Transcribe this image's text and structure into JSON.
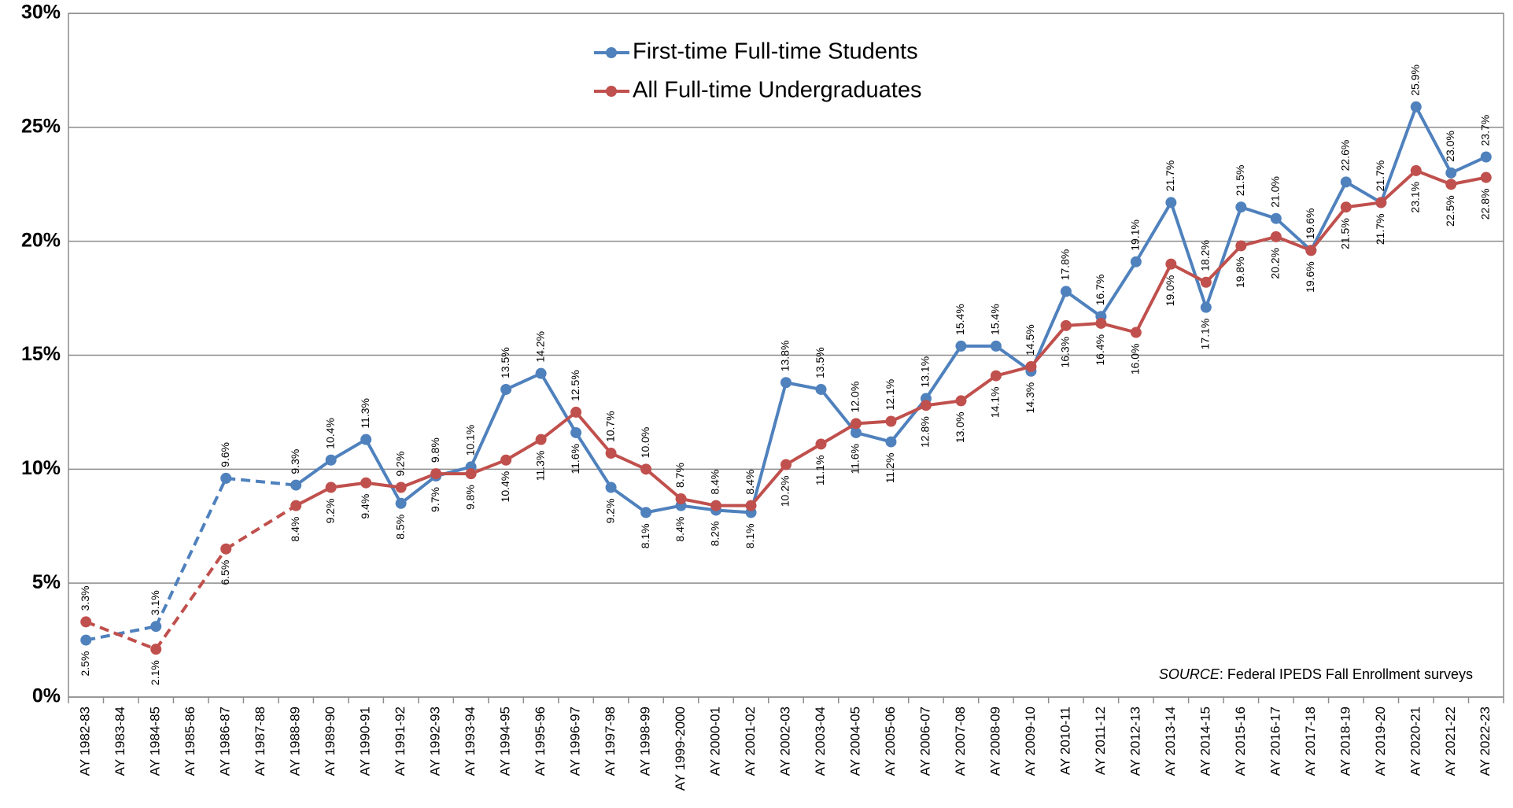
{
  "chart_data": {
    "type": "line",
    "categories": [
      "AY 1982-83",
      "AY 1983-84",
      "AY 1984-85",
      "AY 1985-86",
      "AY 1986-87",
      "AY 1987-88",
      "AY 1988-89",
      "AY 1989-90",
      "AY 1990-91",
      "AY 1991-92",
      "AY 1992-93",
      "AY 1993-94",
      "AY 1994-95",
      "AY 1995-96",
      "AY 1996-97",
      "AY 1997-98",
      "AY 1998-99",
      "AY 1999-2000",
      "AY 2000-01",
      "AY 2001-02",
      "AY 2002-03",
      "AY 2003-04",
      "AY 2004-05",
      "AY 2005-06",
      "AY 2006-07",
      "AY 2007-08",
      "AY 2008-09",
      "AY 2009-10",
      "AY 2010-11",
      "AY 2011-12",
      "AY 2012-13",
      "AY 2013-14",
      "AY 2014-15",
      "AY 2015-16",
      "AY 2016-17",
      "AY 2017-18",
      "AY 2018-19",
      "AY 2019-20",
      "AY 2020-21",
      "AY 2021-22",
      "AY 2022-23"
    ],
    "series": [
      {
        "name": "First-time Full-time Students",
        "color": "#4f81bd",
        "values": [
          2.5,
          null,
          3.1,
          null,
          9.6,
          null,
          9.3,
          10.4,
          11.3,
          8.5,
          9.7,
          10.1,
          13.5,
          14.2,
          11.6,
          9.2,
          8.1,
          8.4,
          8.2,
          8.1,
          13.8,
          13.5,
          11.6,
          11.2,
          13.1,
          15.4,
          15.4,
          14.3,
          17.8,
          16.7,
          19.1,
          21.7,
          17.1,
          21.5,
          21.0,
          19.6,
          22.6,
          21.7,
          25.9,
          23.0,
          23.7
        ],
        "value_labels": [
          "2.5%",
          null,
          "3.1%",
          null,
          "9.6%",
          null,
          "9.3%",
          "10.4%",
          "11.3%",
          "8.5%",
          "9.7%",
          "10.1%",
          "13.5%",
          "14.2%",
          "11.6%",
          "9.2%",
          "8.1%",
          "8.4%",
          "8.2%",
          "8.1%",
          "13.8%",
          "13.5%",
          "11.6%",
          "11.2%",
          "13.1%",
          "15.4%",
          "15.4%",
          "14.3%",
          "17.8%",
          "16.7%",
          "19.1%",
          "21.7%",
          "17.1%",
          "21.5%",
          "21.0%",
          "19.6%",
          "22.6%",
          "21.7%",
          "25.9%",
          "23.0%",
          "23.7%"
        ]
      },
      {
        "name": "All Full-time Undergraduates",
        "color": "#c0504d",
        "values": [
          3.3,
          null,
          2.1,
          null,
          6.5,
          null,
          8.4,
          9.2,
          9.4,
          9.2,
          9.8,
          9.8,
          10.4,
          11.3,
          12.5,
          10.7,
          10.0,
          8.7,
          8.4,
          8.4,
          10.2,
          11.1,
          12.0,
          12.1,
          12.8,
          13.0,
          14.1,
          14.5,
          16.3,
          16.4,
          16.0,
          19.0,
          18.2,
          19.8,
          20.2,
          19.6,
          21.5,
          21.7,
          23.1,
          22.5,
          22.8
        ],
        "value_labels": [
          "3.3%",
          null,
          "2.1%",
          null,
          "6.5%",
          null,
          "8.4%",
          "9.2%",
          "9.4%",
          "9.2%",
          "9.8%",
          "9.8%",
          "10.4%",
          "11.3%",
          "12.5%",
          "10.7%",
          "10.0%",
          "8.7%",
          "8.4%",
          "8.4%",
          "10.2%",
          "11.1%",
          "12.0%",
          "12.1%",
          "12.8%",
          "13.0%",
          "14.1%",
          "14.5%",
          "16.3%",
          "16.4%",
          "16.0%",
          "19.0%",
          "18.2%",
          "19.8%",
          "20.2%",
          "19.6%",
          "21.5%",
          "21.7%",
          "23.1%",
          "22.5%",
          "22.8%"
        ]
      }
    ],
    "ylim": [
      0,
      30
    ],
    "yticks": [
      {
        "value": 0,
        "label": "0%"
      },
      {
        "value": 5,
        "label": "5%"
      },
      {
        "value": 10,
        "label": "10%"
      },
      {
        "value": 15,
        "label": "15%"
      },
      {
        "value": 20,
        "label": "20%"
      },
      {
        "value": 25,
        "label": "25%"
      },
      {
        "value": 30,
        "label": "30%"
      }
    ],
    "grid": true,
    "connect_gaps": "dashed",
    "legend": "top",
    "source_label": "SOURCE",
    "source_text": ": Federal IPEDS Fall Enrollment surveys"
  }
}
